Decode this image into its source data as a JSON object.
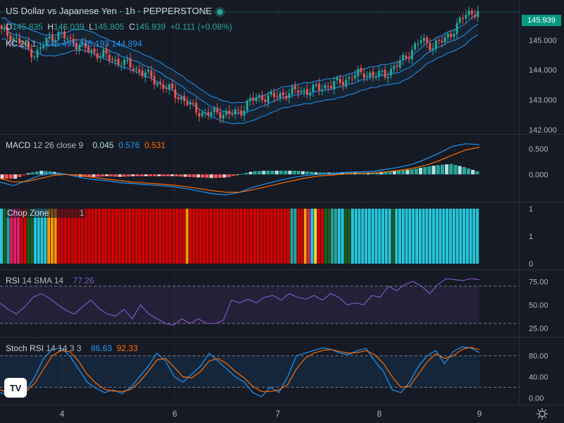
{
  "header": {
    "title": "US Dollar vs Japanese Yen · 1h · PEPPERSTONE",
    "ohlc": {
      "o_label": "O",
      "o": "145.835",
      "h_label": "H",
      "h": "146.039",
      "l_label": "L",
      "l": "145.805",
      "c_label": "C",
      "c": "145.939",
      "change": "+0.111 (+0.08%)"
    }
  },
  "price_tag": "145.939",
  "colors": {
    "background": "#161a25",
    "up": "#26a69a",
    "down": "#ef5350",
    "kc_band": "#2962ff",
    "macd_line": "#2196f3",
    "signal_line": "#ff6d00",
    "rsi_line": "#7e57c2",
    "stoch_k": "#2196f3",
    "stoch_d": "#ff6d00",
    "chop_turquoise": "#26c6da",
    "chop_red": "#d50000",
    "chop_orange": "#ff9800",
    "chop_crimson": "#e91e63",
    "chop_darkgreen": "#1b5e20",
    "chop_green": "#26a69a",
    "chop_yellow": "#fdd835"
  },
  "chart_data": [
    {
      "type": "candlestick",
      "panel": "price",
      "indicator_legend": {
        "name": "KC",
        "params": "20 1",
        "values": [
          "145.491",
          "145.193",
          "144.894"
        ]
      },
      "y_ticks": [
        "145.000",
        "144.000",
        "143.000",
        "142.000"
      ],
      "ylim": [
        142.0,
        146.2
      ],
      "x_ticks": [
        "4",
        "6",
        "7",
        "8",
        "9"
      ],
      "anchor_closes": [
        145.3,
        145.1,
        144.8,
        144.5,
        145.0,
        145.2,
        145.0,
        144.8,
        144.6,
        144.5,
        144.3,
        144.2,
        144.0,
        143.8,
        143.5,
        143.3,
        143.0,
        142.7,
        142.5,
        142.6,
        142.5,
        142.6,
        143.0,
        143.1,
        143.1,
        143.2,
        143.3,
        143.3,
        143.4,
        143.5,
        143.6,
        143.8,
        143.9,
        143.8,
        143.9,
        144.2,
        144.6,
        145.0,
        144.8,
        145.0,
        145.4,
        145.9,
        145.95
      ]
    },
    {
      "type": "line",
      "panel": "macd",
      "legend": {
        "name": "MACD",
        "params": "12 26 close 9",
        "values": [
          "0.045",
          "0.576",
          "0.531"
        ]
      },
      "y_ticks": [
        "0.500",
        "0.000"
      ],
      "ylim": [
        -0.45,
        0.68
      ],
      "macd": [
        -0.15,
        -0.22,
        -0.12,
        -0.02,
        0.02,
        0.0,
        -0.06,
        -0.1,
        -0.12,
        -0.16,
        -0.18,
        -0.2,
        -0.22,
        -0.24,
        -0.28,
        -0.33,
        -0.38,
        -0.4,
        -0.35,
        -0.25,
        -0.18,
        -0.12,
        -0.06,
        -0.02,
        0.0,
        0.02,
        0.04,
        0.05,
        0.06,
        0.1,
        0.14,
        0.2,
        0.3,
        0.42,
        0.55,
        0.6,
        0.58
      ],
      "signal": [
        -0.08,
        -0.15,
        -0.14,
        -0.08,
        -0.02,
        0.0,
        -0.02,
        -0.06,
        -0.09,
        -0.12,
        -0.15,
        -0.17,
        -0.19,
        -0.21,
        -0.24,
        -0.28,
        -0.32,
        -0.35,
        -0.35,
        -0.3,
        -0.24,
        -0.18,
        -0.12,
        -0.07,
        -0.03,
        -0.01,
        0.01,
        0.02,
        0.03,
        0.05,
        0.08,
        0.12,
        0.18,
        0.27,
        0.38,
        0.48,
        0.53
      ]
    },
    {
      "type": "bar",
      "panel": "chop_zone",
      "legend": {
        "name": "Chop Zone",
        "value": "1"
      },
      "y_ticks": [
        "1",
        "1",
        "0"
      ],
      "segments": [
        [
          "turquoise",
          1
        ],
        [
          "darkgreen",
          1
        ],
        [
          "green",
          1
        ],
        [
          "crimson",
          3
        ],
        [
          "red",
          2
        ],
        [
          "darkgreen",
          2
        ],
        [
          "turquoise",
          4
        ],
        [
          "orange",
          3
        ],
        [
          "red",
          38
        ],
        [
          "orange",
          1
        ],
        [
          "red",
          30
        ],
        [
          "green",
          2
        ],
        [
          "red",
          2
        ],
        [
          "orange",
          1
        ],
        [
          "crimson",
          1
        ],
        [
          "turquoise",
          1
        ],
        [
          "yellow",
          1
        ],
        [
          "red",
          2
        ],
        [
          "darkgreen",
          2
        ],
        [
          "green",
          2
        ],
        [
          "turquoise",
          2
        ],
        [
          "darkgreen",
          2
        ],
        [
          "turquoise",
          12
        ],
        [
          "darkgreen",
          1
        ],
        [
          "turquoise",
          25
        ]
      ]
    },
    {
      "type": "line",
      "panel": "rsi",
      "legend": {
        "name": "RSI",
        "params": "14 SMA 14",
        "value": "77.26"
      },
      "y_ticks": [
        "75.00",
        "50.00",
        "25.00"
      ],
      "ylim": [
        20,
        82
      ],
      "bands": [
        70,
        30
      ],
      "values": [
        52,
        45,
        40,
        48,
        58,
        62,
        57,
        50,
        44,
        40,
        48,
        55,
        46,
        40,
        38,
        45,
        35,
        50,
        40,
        35,
        30,
        28,
        35,
        30,
        35,
        30,
        30,
        33,
        55,
        52,
        56,
        52,
        58,
        60,
        55,
        62,
        58,
        56,
        60,
        55,
        62,
        58,
        50,
        52,
        50,
        60,
        58,
        70,
        65,
        72,
        75,
        70,
        62,
        72,
        78,
        77,
        76,
        78,
        77
      ]
    },
    {
      "type": "line",
      "panel": "stoch_rsi",
      "legend": {
        "name": "Stoch RSI",
        "params": "14 14 3 3",
        "values": [
          "86.63",
          "92.33"
        ]
      },
      "y_ticks": [
        "80.00",
        "40.00",
        "0.00"
      ],
      "ylim": [
        -5,
        105
      ],
      "bands": [
        80,
        20
      ],
      "k": [
        10,
        5,
        8,
        15,
        40,
        75,
        92,
        95,
        80,
        55,
        30,
        18,
        10,
        15,
        8,
        20,
        40,
        60,
        85,
        70,
        40,
        30,
        45,
        60,
        85,
        70,
        55,
        40,
        30,
        10,
        2,
        20,
        10,
        40,
        80,
        85,
        90,
        95,
        92,
        85,
        82,
        90,
        94,
        70,
        50,
        15,
        10,
        30,
        60,
        80,
        90,
        65,
        88,
        97,
        95,
        86
      ],
      "d": [
        15,
        10,
        8,
        12,
        28,
        55,
        80,
        90,
        88,
        70,
        45,
        28,
        16,
        13,
        12,
        16,
        30,
        50,
        72,
        75,
        58,
        40,
        38,
        50,
        70,
        75,
        65,
        50,
        38,
        22,
        12,
        12,
        15,
        25,
        55,
        75,
        85,
        90,
        92,
        88,
        85,
        86,
        90,
        82,
        65,
        40,
        20,
        22,
        45,
        68,
        84,
        75,
        80,
        92,
        96,
        92
      ]
    }
  ]
}
